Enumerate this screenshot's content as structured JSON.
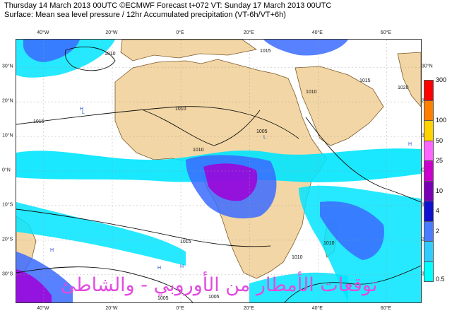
{
  "header": {
    "line1": "Thursday 14 March 2013 00UTC ©ECMWF Forecast t+072 VT: Sunday 17 March 2013 00UTC",
    "line2": "Surface: Mean sea level pressure / 12hr Accumulated precipitation (VT-6h/VT+6h)"
  },
  "axes": {
    "lon_labels": [
      "40°W",
      "20°W",
      "0°E",
      "20°E",
      "40°E",
      "60°E"
    ],
    "lon_values": [
      -40,
      -20,
      0,
      20,
      40,
      60
    ],
    "lat_labels": [
      "30°N",
      "20°N",
      "10°N",
      "0°N",
      "10°S",
      "20°S",
      "30°S"
    ],
    "lat_values": [
      30,
      20,
      10,
      0,
      -10,
      -20,
      -30
    ],
    "lon_range": [
      -48,
      70
    ],
    "lat_range": [
      -38,
      38
    ]
  },
  "isobars": {
    "labels": [
      "1010",
      "1005",
      "1015",
      "1015",
      "1010",
      "1015",
      "1010",
      "1020",
      "1015",
      "1010",
      "1005",
      "1005",
      "1010",
      "1010"
    ]
  },
  "colorbar": {
    "title": "",
    "ticks": [
      "300",
      "100",
      "50",
      "25",
      "10",
      "4",
      "2",
      "0.5"
    ],
    "colors": [
      "#ff0000",
      "#ff8000",
      "#ffd200",
      "#ff66ff",
      "#cc00cc",
      "#7a00b8",
      "#1010d0",
      "#4a7cff",
      "#33ccff",
      "#00ffff"
    ]
  },
  "colors": {
    "land": "#f3d6a5",
    "coast": "#7a5a2a",
    "isobar": "#111111",
    "precip_light": "#00e5ff",
    "precip_medium": "#3a6bff",
    "precip_heavy": "#a000d8"
  },
  "watermark": {
    "text": "توقعات الأمطار من الأوروبي - والشاطئ"
  }
}
